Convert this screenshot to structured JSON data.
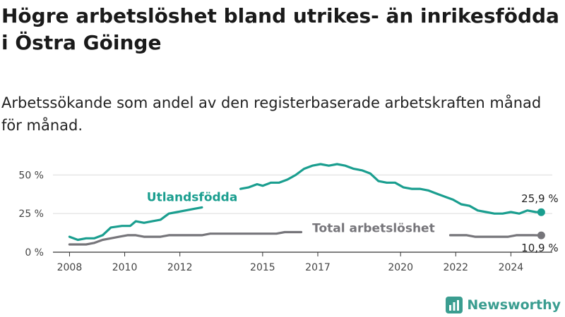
{
  "header": {
    "title": "Högre arbetslöshet bland utrikes- än inrikesfödda i Östra Göinge",
    "subtitle": "Arbetssökande som andel av den registerbaserade arbetskraften månad för månad."
  },
  "brand": {
    "name": "Newsworthy",
    "color": "#3a9d90"
  },
  "chart_data": {
    "type": "line",
    "x_unit": "year",
    "xlim": [
      2007.4,
      2025.5
    ],
    "ylim": [
      0,
      57
    ],
    "yticks": [
      0,
      25,
      50
    ],
    "ytick_labels": [
      "0 %",
      "25 %",
      "50 %"
    ],
    "xticks": [
      2008,
      2010,
      2012,
      2015,
      2017,
      2020,
      2022,
      2024
    ],
    "xtick_labels": [
      "2008",
      "2010",
      "2012",
      "2015",
      "2017",
      "2020",
      "2022",
      "2024"
    ],
    "grid": true,
    "series": [
      {
        "name": "Utlandsfödda",
        "color": "#1a9e8f",
        "label_year": 2010.8,
        "label_value": 33,
        "end_label": "25,9 %",
        "points": [
          [
            2008.0,
            10
          ],
          [
            2008.3,
            8
          ],
          [
            2008.6,
            9
          ],
          [
            2008.9,
            9
          ],
          [
            2009.2,
            11
          ],
          [
            2009.5,
            16
          ],
          [
            2009.9,
            17
          ],
          [
            2010.2,
            17
          ],
          [
            2010.4,
            20
          ],
          [
            2010.7,
            19
          ],
          [
            2011.0,
            20
          ],
          [
            2011.3,
            21
          ],
          [
            2011.6,
            25
          ],
          [
            2011.9,
            26
          ],
          [
            2012.2,
            27
          ],
          [
            2012.5,
            28
          ],
          [
            2012.8,
            29
          ],
          [
            2014.2,
            41
          ],
          [
            2014.5,
            42
          ],
          [
            2014.8,
            44
          ],
          [
            2015.0,
            43
          ],
          [
            2015.3,
            45
          ],
          [
            2015.6,
            45
          ],
          [
            2015.9,
            47
          ],
          [
            2016.2,
            50
          ],
          [
            2016.5,
            54
          ],
          [
            2016.8,
            56
          ],
          [
            2017.1,
            57
          ],
          [
            2017.4,
            56
          ],
          [
            2017.7,
            57
          ],
          [
            2018.0,
            56
          ],
          [
            2018.3,
            54
          ],
          [
            2018.6,
            53
          ],
          [
            2018.9,
            51
          ],
          [
            2019.2,
            46
          ],
          [
            2019.5,
            45
          ],
          [
            2019.8,
            45
          ],
          [
            2020.1,
            42
          ],
          [
            2020.4,
            41
          ],
          [
            2020.7,
            41
          ],
          [
            2021.0,
            40
          ],
          [
            2021.3,
            38
          ],
          [
            2021.6,
            36
          ],
          [
            2021.9,
            34
          ],
          [
            2022.2,
            31
          ],
          [
            2022.5,
            30
          ],
          [
            2022.8,
            27
          ],
          [
            2023.1,
            26
          ],
          [
            2023.4,
            25
          ],
          [
            2023.7,
            25
          ],
          [
            2024.0,
            26
          ],
          [
            2024.3,
            25
          ],
          [
            2024.6,
            27
          ],
          [
            2024.9,
            26
          ],
          [
            2025.1,
            25.9
          ]
        ]
      },
      {
        "name": "Total arbetslöshet",
        "color": "#76757a",
        "label_year": 2016.8,
        "label_value": 13,
        "end_label": "10,9 %",
        "points": [
          [
            2008.0,
            5
          ],
          [
            2008.3,
            5
          ],
          [
            2008.6,
            5
          ],
          [
            2008.9,
            6
          ],
          [
            2009.2,
            8
          ],
          [
            2009.5,
            9
          ],
          [
            2009.8,
            10
          ],
          [
            2010.1,
            11
          ],
          [
            2010.4,
            11
          ],
          [
            2010.7,
            10
          ],
          [
            2011.0,
            10
          ],
          [
            2011.3,
            10
          ],
          [
            2011.6,
            11
          ],
          [
            2011.9,
            11
          ],
          [
            2012.2,
            11
          ],
          [
            2012.5,
            11
          ],
          [
            2012.8,
            11
          ],
          [
            2013.1,
            12
          ],
          [
            2013.4,
            12
          ],
          [
            2013.7,
            12
          ],
          [
            2014.0,
            12
          ],
          [
            2014.3,
            12
          ],
          [
            2014.6,
            12
          ],
          [
            2014.9,
            12
          ],
          [
            2015.2,
            12
          ],
          [
            2015.5,
            12
          ],
          [
            2015.8,
            13
          ],
          [
            2016.1,
            13
          ],
          [
            2016.4,
            13
          ],
          [
            2021.8,
            11
          ],
          [
            2022.1,
            11
          ],
          [
            2022.4,
            11
          ],
          [
            2022.7,
            10
          ],
          [
            2023.0,
            10
          ],
          [
            2023.3,
            10
          ],
          [
            2023.6,
            10
          ],
          [
            2023.9,
            10
          ],
          [
            2024.2,
            11
          ],
          [
            2024.5,
            11
          ],
          [
            2024.8,
            11
          ],
          [
            2025.1,
            10.9
          ]
        ]
      }
    ]
  }
}
